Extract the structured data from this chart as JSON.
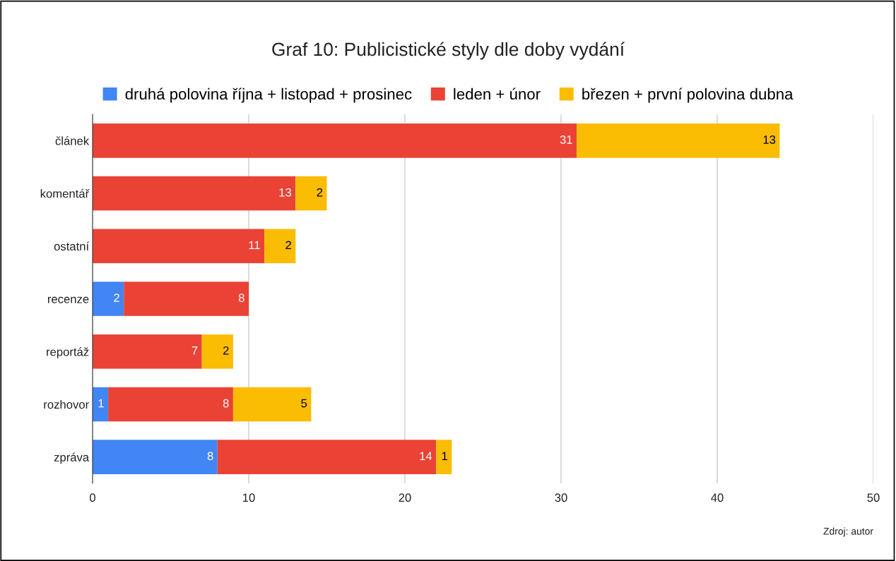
{
  "chart_data": {
    "type": "bar",
    "orientation": "horizontal",
    "stacked": true,
    "title": "Graf 10: Publicistické styly dle doby vydání",
    "categories": [
      "článek",
      "komentář",
      "ostatní",
      "recenze",
      "reportáž",
      "rozhovor",
      "zpráva"
    ],
    "series": [
      {
        "name": "druhá polovina října + listopad + prosinec",
        "color": "#4285f4",
        "values": [
          null,
          null,
          null,
          2,
          null,
          1,
          8
        ]
      },
      {
        "name": "leden + únor",
        "color": "#ea4335",
        "values": [
          31,
          13,
          11,
          8,
          7,
          8,
          14
        ]
      },
      {
        "name": "březen + první polovina dubna",
        "color": "#fbbc04",
        "values": [
          13,
          2,
          2,
          null,
          2,
          5,
          1
        ]
      }
    ],
    "xlim": [
      0,
      50
    ],
    "xticks": [
      0,
      10,
      20,
      30,
      40,
      50
    ],
    "grid": "x",
    "legend": "top",
    "data_labels": true,
    "annotations": [
      "Zdroj: autor"
    ]
  }
}
